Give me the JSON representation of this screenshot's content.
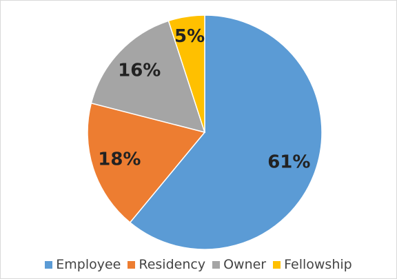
{
  "chart_data": {
    "type": "pie",
    "categories": [
      "Employee",
      "Residency",
      "Owner",
      "Fellowship"
    ],
    "values": [
      61,
      18,
      16,
      5
    ],
    "value_labels": [
      "61%",
      "18%",
      "16%",
      "5%"
    ],
    "colors": [
      "#5b9bd5",
      "#ed7d31",
      "#a5a5a5",
      "#ffc000"
    ],
    "legend": "bottom"
  }
}
